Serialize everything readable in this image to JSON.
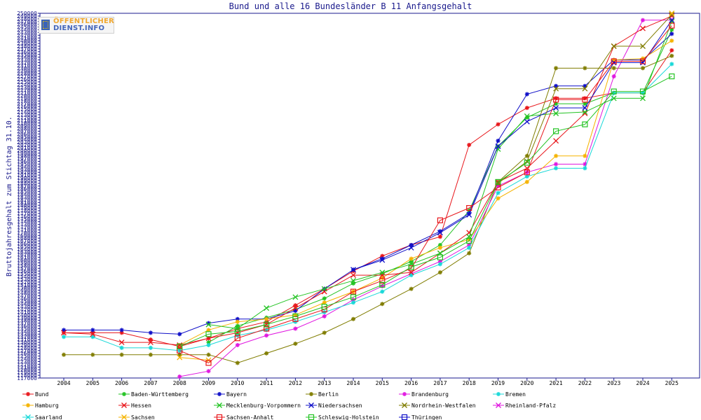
{
  "chart_data": {
    "type": "line",
    "title": "Bund und alle 16 Bundesländer B 11 Anfangsgehalt",
    "ylabel": "Bruttojahresgehalt zum Stichtag 31.10.",
    "xlabel": "",
    "ylim": [
      117000,
      250000
    ],
    "grid": false,
    "legend_placement": "bottom",
    "categories": [
      "2004",
      "2005",
      "2006",
      "2007",
      "2008",
      "2009",
      "2010",
      "2011",
      "2012",
      "2013",
      "2014",
      "2015",
      "2016",
      "2017",
      "2018",
      "2019",
      "2020",
      "2021",
      "2022",
      "2023",
      "2024",
      "2025"
    ],
    "series": [
      {
        "name": "Bund",
        "color": "#e8161b",
        "marker": "star",
        "values": [
          133500,
          133500,
          133500,
          131000,
          128500,
          131500,
          135000,
          137500,
          143500,
          149500,
          156000,
          161500,
          165500,
          168500,
          202000,
          209500,
          215500,
          219000,
          219000,
          221000,
          221000,
          236500
        ]
      },
      {
        "name": "Baden-Württemberg",
        "color": "#22c322",
        "marker": "star",
        "values": [
          null,
          null,
          null,
          null,
          null,
          130000,
          136000,
          139000,
          142000,
          146000,
          151500,
          155000,
          159500,
          165500,
          178000,
          201500,
          212000,
          217000,
          217000,
          221000,
          221000,
          244000
        ]
      },
      {
        "name": "Bayern",
        "color": "#1010c8",
        "marker": "star",
        "values": [
          134500,
          134500,
          134500,
          133500,
          133000,
          137000,
          138500,
          138500,
          141500,
          149500,
          156500,
          160500,
          165500,
          170500,
          177000,
          203500,
          220500,
          223500,
          223500,
          233000,
          233000,
          242500
        ]
      },
      {
        "name": "Berlin",
        "color": "#807d00",
        "marker": "star",
        "values": [
          125500,
          125500,
          125500,
          125500,
          125500,
          125500,
          122500,
          126000,
          129500,
          133500,
          138500,
          144000,
          149500,
          155500,
          162500,
          188500,
          198000,
          230000,
          230000,
          230000,
          230000,
          234500
        ]
      },
      {
        "name": "Brandenburg",
        "color": "#e017e0",
        "marker": "star",
        "values": [
          null,
          null,
          null,
          null,
          117500,
          119500,
          129000,
          132500,
          135000,
          139500,
          145500,
          150500,
          155000,
          159500,
          165500,
          187000,
          192000,
          195000,
          195000,
          227000,
          247500,
          247500
        ]
      },
      {
        "name": "Bremen",
        "color": "#18d8d8",
        "marker": "star",
        "values": [
          132000,
          132000,
          128000,
          128000,
          127000,
          129000,
          132500,
          134500,
          137500,
          141000,
          144500,
          148500,
          154500,
          158500,
          164500,
          184500,
          190500,
          193500,
          193500,
          221000,
          221000,
          231500
        ]
      },
      {
        "name": "Hamburg",
        "color": "#f5b300",
        "marker": "star",
        "values": [
          null,
          null,
          null,
          null,
          129000,
          134500,
          137500,
          138500,
          140000,
          144500,
          148500,
          153500,
          160500,
          164500,
          167500,
          182500,
          188500,
          198000,
          198000,
          233000,
          233500,
          240000
        ]
      },
      {
        "name": "Hessen",
        "color": "#e8161b",
        "marker": "x",
        "values": [
          133500,
          133000,
          130000,
          130000,
          129000,
          131500,
          133500,
          136500,
          142500,
          148500,
          154500,
          154500,
          155500,
          162500,
          170000,
          188500,
          193500,
          203500,
          213500,
          238000,
          244500,
          249000
        ]
      },
      {
        "name": "Mecklenburg-Vorpommern",
        "color": "#22c322",
        "marker": "x",
        "values": [
          null,
          null,
          null,
          null,
          null,
          136500,
          135000,
          142500,
          146500,
          149500,
          152500,
          155500,
          158500,
          162500,
          168500,
          200500,
          212500,
          213500,
          214000,
          219000,
          219000,
          247000
        ]
      },
      {
        "name": "Niedersachsen",
        "color": "#1010c8",
        "marker": "x",
        "values": [
          null,
          null,
          null,
          null,
          null,
          null,
          null,
          null,
          null,
          null,
          156500,
          160000,
          164500,
          170000,
          176500,
          201500,
          210500,
          215500,
          215500,
          232000,
          232000,
          247500
        ]
      },
      {
        "name": "Nordrhein-Westfalen",
        "color": "#807d00",
        "marker": "x",
        "values": [
          null,
          null,
          null,
          null,
          null,
          null,
          null,
          null,
          null,
          null,
          null,
          null,
          null,
          null,
          null,
          188000,
          196000,
          222500,
          222500,
          238000,
          238000,
          249500
        ]
      },
      {
        "name": "Rheinland-Pfalz",
        "color": "#e017e0",
        "marker": "x",
        "values": [
          null,
          null,
          null,
          null,
          null,
          null,
          null,
          null,
          null,
          null,
          null,
          null,
          null,
          null,
          null,
          null,
          null,
          null,
          null,
          null,
          null,
          null
        ]
      },
      {
        "name": "Saarland",
        "color": "#18d8d8",
        "marker": "x",
        "values": [
          null,
          null,
          null,
          null,
          null,
          null,
          null,
          null,
          null,
          null,
          null,
          null,
          null,
          null,
          null,
          null,
          null,
          null,
          null,
          null,
          null,
          null
        ]
      },
      {
        "name": "Sachsen",
        "color": "#f5b300",
        "marker": "x",
        "values": [
          null,
          null,
          null,
          null,
          124500,
          123500,
          null,
          null,
          null,
          null,
          null,
          null,
          null,
          null,
          null,
          null,
          null,
          null,
          null,
          null,
          null,
          250000
        ]
      },
      {
        "name": "Sachsen-Anhalt",
        "color": "#e8161b",
        "marker": "square",
        "values": [
          null,
          null,
          null,
          null,
          127000,
          122500,
          131500,
          135000,
          138500,
          142000,
          148500,
          152500,
          157000,
          174500,
          179000,
          186500,
          192000,
          218500,
          218500,
          232500,
          232500,
          245500
        ]
      },
      {
        "name": "Schleswig-Holstein",
        "color": "#22c322",
        "marker": "square",
        "values": [
          null,
          null,
          null,
          null,
          128500,
          133000,
          134000,
          136500,
          139500,
          143000,
          146500,
          151000,
          157500,
          161000,
          167000,
          188500,
          195500,
          207000,
          209500,
          221500,
          221500,
          227000
        ]
      },
      {
        "name": "Thüringen",
        "color": "#1010c8",
        "marker": "square",
        "values": [
          null,
          null,
          null,
          null,
          null,
          null,
          null,
          null,
          null,
          null,
          null,
          null,
          null,
          null,
          null,
          null,
          null,
          null,
          null,
          null,
          null,
          null
        ]
      }
    ]
  },
  "logo": {
    "line1": "ÖFFENTLICHER",
    "line2": "DIENST.INFO"
  }
}
